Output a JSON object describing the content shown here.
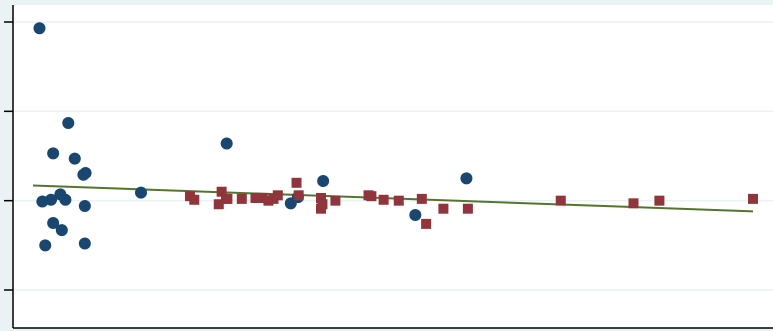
{
  "chart_data": {
    "type": "scatter",
    "title": "",
    "xlabel": "",
    "ylabel": "",
    "xlim": [
      0,
      100
    ],
    "ylim": [
      -1.0,
      2.0
    ],
    "grid": true,
    "legend": "none",
    "colors": {
      "background": "#eaf2f3",
      "plot_background": "#ffffff",
      "grid": "#eaf2f3",
      "axis": "#000000",
      "series_a": "#1a476f",
      "series_b": "#90353b",
      "fit_line": "#55752f"
    },
    "series": [
      {
        "marker": "circle",
        "color": "#1a476f",
        "x": [
          0.9,
          1.3,
          1.7,
          2.5,
          2.8,
          2.8,
          3.8,
          4.0,
          4.5,
          4.9,
          5.8,
          7.0,
          7.2,
          7.2,
          7.3,
          15.0,
          26.9,
          35.8,
          36.8,
          40.3,
          53.1,
          60.2
        ],
        "y": [
          1.93,
          -0.01,
          -0.5,
          0.01,
          0.53,
          -0.25,
          0.07,
          -0.33,
          0.01,
          0.87,
          0.47,
          0.29,
          -0.48,
          -0.06,
          0.31,
          0.09,
          0.64,
          -0.03,
          0.04,
          0.22,
          -0.16,
          0.25
        ]
      },
      {
        "marker": "square",
        "color": "#90353b",
        "x": [
          21.8,
          22.4,
          25.8,
          26.2,
          26.8,
          27.0,
          29.0,
          30.9,
          31.9,
          32.7,
          33.4,
          34.0,
          36.6,
          36.9,
          40.0,
          40.0,
          40.2,
          42.0,
          46.6,
          47.0,
          48.7,
          50.8,
          54.0,
          54.6,
          57.0,
          60.4,
          73.3,
          83.4,
          87.0,
          100.0
        ],
        "y": [
          0.05,
          0.01,
          -0.04,
          0.1,
          0.02,
          0.02,
          0.02,
          0.03,
          0.03,
          0.0,
          0.02,
          0.06,
          0.2,
          0.06,
          0.03,
          -0.09,
          -0.04,
          0.0,
          0.06,
          0.05,
          0.01,
          0.0,
          0.02,
          -0.26,
          -0.09,
          -0.09,
          0.0,
          -0.03,
          0.0,
          0.02
        ]
      }
    ],
    "fit_line": {
      "x": [
        0,
        100
      ],
      "y": [
        0.17,
        -0.12
      ]
    }
  }
}
